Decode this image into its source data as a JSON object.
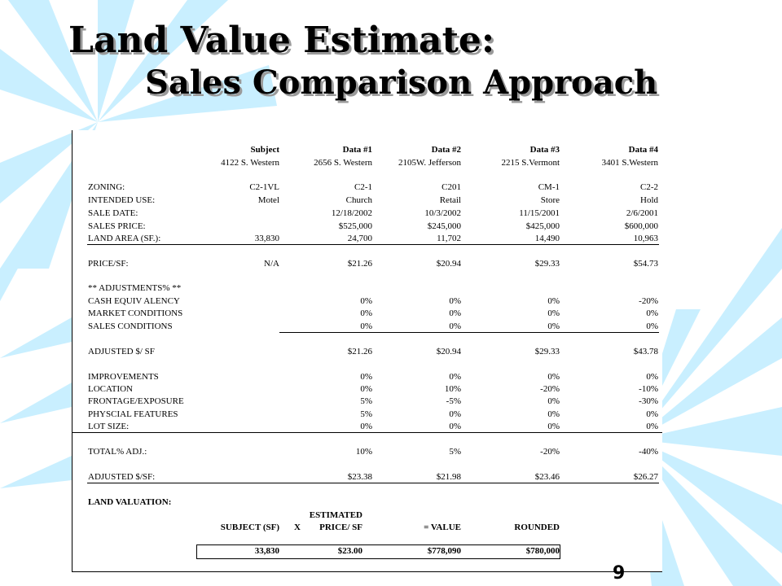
{
  "slide": {
    "title_line1": "Land Value Estimate:",
    "title_line2": "Sales Comparison Approach",
    "page_number": "9",
    "accent_color": "#c9efff"
  },
  "sheet": {
    "headers": [
      "Subject",
      "Data #1",
      "Data #2",
      "Data #3",
      "Data #4"
    ],
    "addresses": [
      "4122 S. Western",
      "2656 S. Western",
      "2105W. Jefferson",
      "2215 S.Vermont",
      "3401 S.Western"
    ],
    "rows": {
      "zoning": {
        "label": "ZONING:",
        "values": [
          "C2-1VL",
          "C2-1",
          "C201",
          "CM-1",
          "C2-2"
        ]
      },
      "intended_use": {
        "label": "INTENDED USE:",
        "values": [
          "Motel",
          "Church",
          "Retail",
          "Store",
          "Hold"
        ]
      },
      "sale_date": {
        "label": "SALE DATE:",
        "values": [
          "",
          "12/18/2002",
          "10/3/2002",
          "11/15/2001",
          "2/6/2001"
        ]
      },
      "sales_price": {
        "label": "SALES PRICE:",
        "values": [
          "",
          "$525,000",
          "$245,000",
          "$425,000",
          "$600,000"
        ]
      },
      "land_area": {
        "label": "LAND AREA (SF.):",
        "values": [
          "33,830",
          "24,700",
          "11,702",
          "14,490",
          "10,963"
        ]
      },
      "price_sf": {
        "label": "PRICE/SF:",
        "values": [
          "N/A",
          "$21.26",
          "$20.94",
          "$29.33",
          "$54.73"
        ]
      },
      "adj_header": {
        "label": "** ADJUSTMENTS% **"
      },
      "cash_equiv": {
        "label": "CASH EQUIV ALENCY",
        "values": [
          "0%",
          "0%",
          "0%",
          "-20%"
        ]
      },
      "market": {
        "label": "MARKET CONDITIONS",
        "values": [
          "0%",
          "0%",
          "0%",
          "0%"
        ]
      },
      "sales_cond": {
        "label": "SALES CONDITIONS",
        "values": [
          "0%",
          "0%",
          "0%",
          "0%"
        ]
      },
      "adjusted_sf": {
        "label": "ADJUSTED $/ SF",
        "values": [
          "$21.26",
          "$20.94",
          "$29.33",
          "$43.78"
        ]
      },
      "improvements": {
        "label": "IMPROVEMENTS",
        "values": [
          "0%",
          "0%",
          "0%",
          "0%"
        ]
      },
      "location": {
        "label": "LOCATION",
        "values": [
          "0%",
          "10%",
          "-20%",
          "-10%"
        ]
      },
      "frontage": {
        "label": "FRONTAGE/EXPOSURE",
        "values": [
          "5%",
          "-5%",
          "0%",
          "-30%"
        ]
      },
      "physical": {
        "label": "PHYSCIAL FEATURES",
        "values": [
          "5%",
          "0%",
          "0%",
          "0%"
        ]
      },
      "lot_size": {
        "label": "LOT SIZE:",
        "values": [
          "0%",
          "0%",
          "0%",
          "0%"
        ]
      },
      "total_adj": {
        "label": "TOTAL% ADJ.:",
        "values": [
          "10%",
          "5%",
          "-20%",
          "-40%"
        ]
      },
      "adjusted_sf2": {
        "label": "ADJUSTED $/SF:",
        "values": [
          "$23.38",
          "$21.98",
          "$23.46",
          "$26.27"
        ]
      }
    },
    "valuation": {
      "label": "LAND VALUATION:",
      "estimated": "ESTIMATED",
      "subject_sf": "SUBJECT (SF)",
      "times": "X",
      "price_sf": "PRICE/ SF",
      "equals_value": "= VALUE",
      "rounded": "ROUNDED",
      "result": [
        "33,830",
        "$23.00",
        "$778,090",
        "$780,000"
      ]
    }
  }
}
